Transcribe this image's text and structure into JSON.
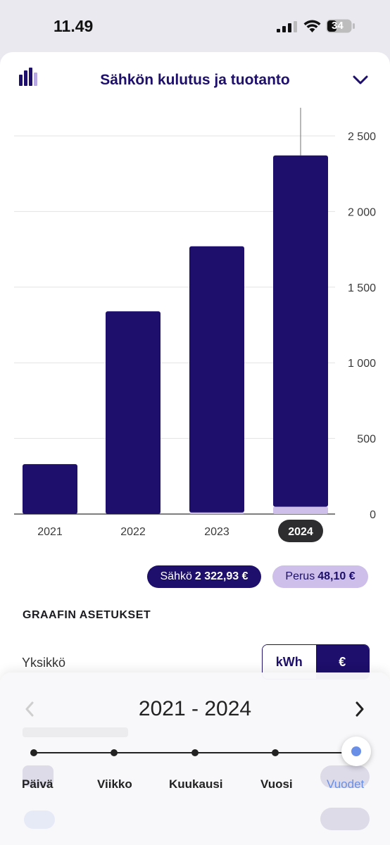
{
  "status_bar": {
    "time": "11.49",
    "battery": "34"
  },
  "header": {
    "title": "Sähkön kulutus ja tuotanto"
  },
  "chart_data": {
    "type": "bar",
    "categories": [
      "2021",
      "2022",
      "2023",
      "2024"
    ],
    "series": [
      {
        "name": "Sähkö",
        "values": [
          330,
          1340,
          1760,
          2323
        ]
      },
      {
        "name": "Perus",
        "values": [
          0,
          0,
          10,
          48
        ]
      }
    ],
    "selected_category": "2024",
    "ylim": [
      0,
      2700
    ],
    "yticks": [
      0,
      500,
      1000,
      1500,
      2000,
      2500
    ],
    "ytick_labels": [
      "0",
      "500",
      "1 000",
      "1 500",
      "2 000",
      "2 500"
    ],
    "yaxis_position": "right",
    "grid": true,
    "colors": {
      "Sähkö": "#1d0f6b",
      "Perus": "#cdbfe9"
    }
  },
  "summary": {
    "sahko_label": "Sähkö",
    "sahko_value": "2 322,93 €",
    "perus_label": "Perus",
    "perus_value": "48,10 €"
  },
  "settings": {
    "heading": "GRAAFIN ASETUKSET",
    "unit_label": "Yksikkö",
    "unit_options": [
      "kWh",
      "€"
    ],
    "unit_selected": "€"
  },
  "period_picker": {
    "range": "2021 - 2024",
    "options": [
      "Päivä",
      "Viikko",
      "Kuukausi",
      "Vuosi",
      "Vuodet"
    ],
    "selected": "Vuodet"
  }
}
